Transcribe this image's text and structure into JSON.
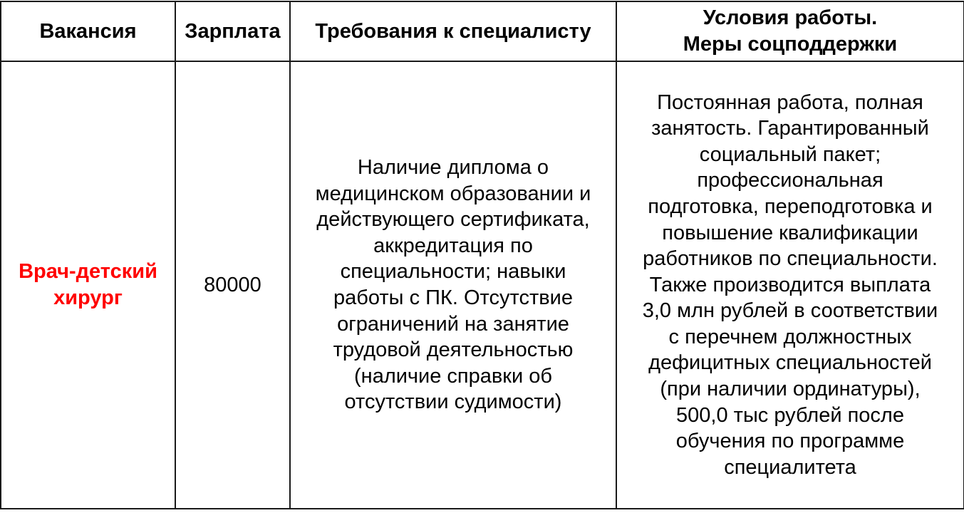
{
  "headers": {
    "vacancy": "Вакансия",
    "salary": "Зарплата",
    "requirements": "Требования к специалисту",
    "conditions_lines": [
      "Условия работы.",
      "Меры соцподдержки"
    ]
  },
  "rows": [
    {
      "vacancy_lines": [
        "Врач-детский",
        "хирург"
      ],
      "vacancy_color": "#ff0000",
      "salary": "80000",
      "requirements_lines": [
        "Наличие диплома о",
        "медицинском образовании и",
        "действующего сертификата,",
        "аккредитация по",
        "специальности; навыки",
        "работы с ПК. Отсутствие",
        "ограничений на занятие",
        "трудовой деятельностью",
        "(наличие справки об",
        "отсутствии судимости)"
      ],
      "conditions_lines": [
        "Постоянная работа, полная",
        "занятость. Гарантированный",
        "социальный пакет;",
        "профессиональная",
        "подготовка, переподготовка и",
        "повышение квалификации",
        "работников по специальности.",
        "Также производится выплата",
        "3,0 млн рублей в соответствии",
        "с перечнем должностных",
        "дефицитных специальностей",
        "(при наличии ординатуры),",
        "500,0 тыс рублей после",
        "обучения по программе",
        "специалитета"
      ]
    }
  ]
}
